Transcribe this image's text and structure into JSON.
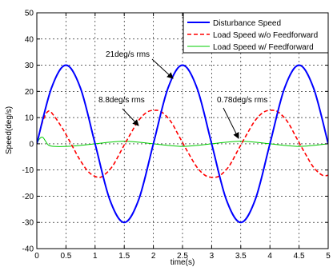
{
  "chart_data": {
    "type": "line",
    "title": "",
    "xlabel": "time(s)",
    "ylabel": "Speed(deg/s)",
    "xlim": [
      0,
      5
    ],
    "ylim": [
      -40,
      50
    ],
    "xticks": [
      "0",
      "0.5",
      "1",
      "1.5",
      "2",
      "2.5",
      "3",
      "3.5",
      "4",
      "4.5",
      "5"
    ],
    "yticks": [
      "50",
      "40",
      "30",
      "20",
      "10",
      "0",
      "-10",
      "-20",
      "-30",
      "-40"
    ],
    "grid": true,
    "legend_position": "top-right",
    "series": [
      {
        "name": "Disturbance Speed",
        "color": "#0000ff",
        "style": "solid",
        "x": [
          0,
          0.25,
          0.5,
          0.75,
          1.0,
          1.25,
          1.5,
          1.75,
          2.0,
          2.25,
          2.5,
          2.75,
          3.0,
          3.25,
          3.5,
          3.75,
          4.0,
          4.25,
          4.5,
          4.75,
          5.0
        ],
        "y": [
          0,
          21.2,
          30,
          21.2,
          0,
          -21.2,
          -30,
          -21.2,
          0,
          21.2,
          30,
          21.2,
          0,
          -21.2,
          -30,
          -21.2,
          0,
          21.2,
          30,
          21.2,
          0
        ]
      },
      {
        "name": "Load Speed w/o Feedforward",
        "color": "#ff0000",
        "style": "dashed",
        "x": [
          0,
          0.1,
          0.2,
          0.3,
          0.45,
          0.6,
          0.75,
          0.9,
          1.05,
          1.15,
          1.3,
          1.45,
          1.6,
          1.75,
          1.9,
          2.05,
          2.15,
          2.3,
          2.45,
          2.6,
          2.75,
          2.9,
          3.05,
          3.15,
          3.3,
          3.45,
          3.6,
          3.75,
          3.9,
          4.05,
          4.15,
          4.3,
          4.45,
          4.6,
          4.75,
          4.9,
          5.0
        ],
        "y": [
          0,
          8.5,
          12.5,
          10.5,
          5.5,
          -0.5,
          -6.5,
          -11.0,
          -12.8,
          -12.0,
          -8.5,
          -2.5,
          3.5,
          9.0,
          12.2,
          12.8,
          12.0,
          8.5,
          2.5,
          -3.5,
          -9.0,
          -12.2,
          -12.8,
          -12.0,
          -8.5,
          -2.5,
          3.5,
          9.0,
          12.2,
          12.8,
          12.0,
          8.5,
          2.5,
          -3.5,
          -9.0,
          -12.0,
          -12.0
        ]
      },
      {
        "name": "Load Speed w/ Feedforward",
        "color": "#00cc00",
        "style": "solid",
        "x": [
          0,
          0.05,
          0.1,
          0.15,
          0.2,
          0.3,
          0.5,
          0.75,
          1.0,
          1.25,
          1.5,
          1.75,
          2.0,
          2.25,
          2.5,
          2.75,
          3.0,
          3.25,
          3.5,
          3.75,
          4.0,
          4.25,
          4.5,
          4.75,
          5.0
        ],
        "y": [
          0,
          2.0,
          2.5,
          1.0,
          -0.5,
          -1.0,
          -1.0,
          -0.6,
          0,
          0.6,
          1.0,
          0.6,
          0,
          -0.6,
          -1.0,
          -0.6,
          0,
          0.6,
          1.0,
          0.6,
          0,
          -0.6,
          -1.0,
          -0.6,
          0
        ]
      }
    ],
    "annotations": [
      {
        "text": "21deg/s rms",
        "color": "#000000"
      },
      {
        "text": "8.8deg/s rms",
        "color": "#000000"
      },
      {
        "text": "0.78deg/s rms",
        "color": "#000000"
      }
    ]
  }
}
